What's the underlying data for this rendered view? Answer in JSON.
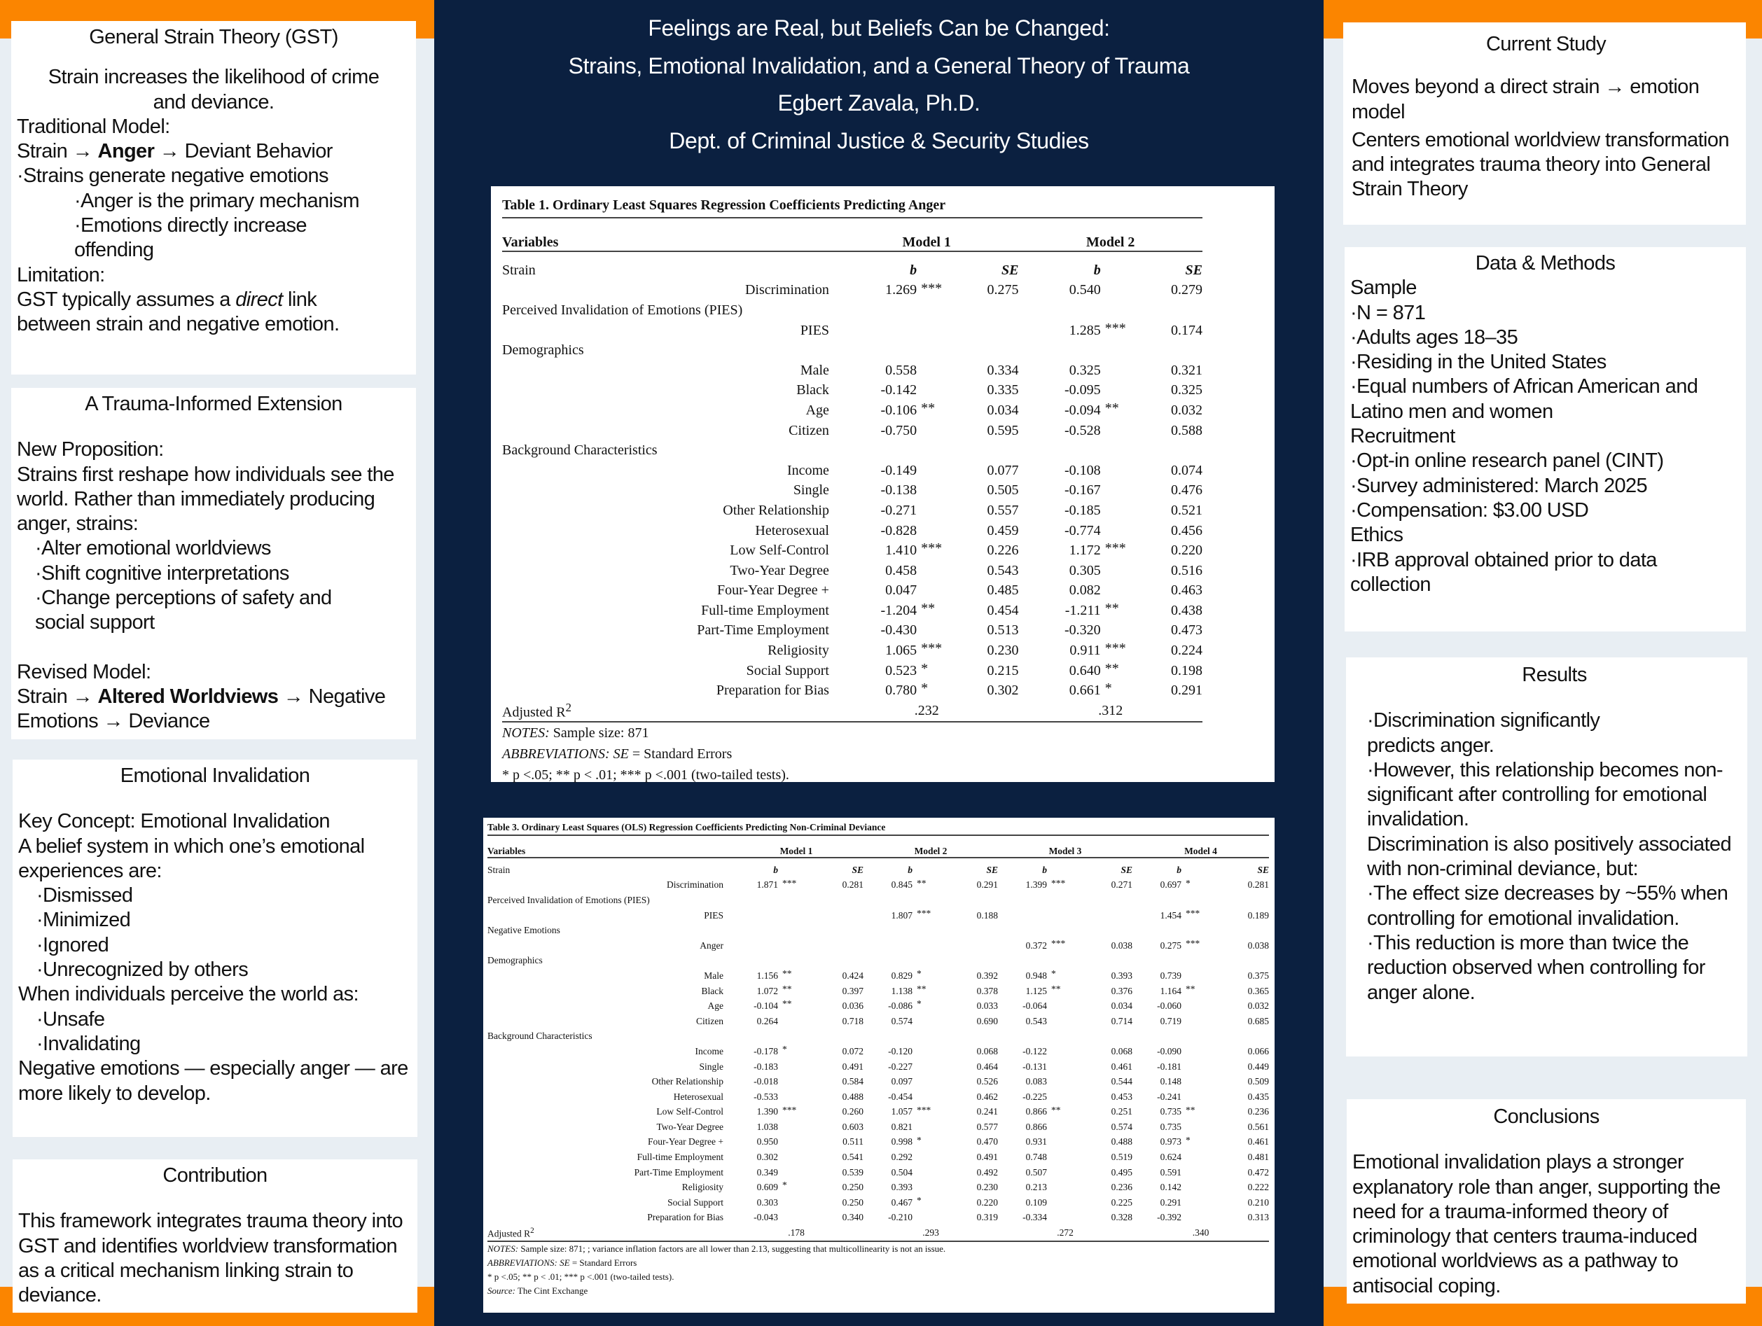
{
  "colors": {
    "orange": "#fb8500",
    "navy": "#0b2040",
    "background": "#e8eef3"
  },
  "header": {
    "title_line1": "Feelings are Real, but Beliefs Can be Changed:",
    "title_line2": "Strains, Emotional Invalidation, and a General Theory of Trauma",
    "author": "Egbert Zavala, Ph.D.",
    "department": "Dept.  of Criminal Justice & Security Studies"
  },
  "gst": {
    "title": "General Strain Theory (GST)",
    "intro": "Strain increases the likelihood of crime and deviance.",
    "traditional_label": "Traditional Model:",
    "model_a": "Strain → ",
    "model_b": "Anger",
    "model_c": " →  Deviant Behavior",
    "b1": "·Strains generate negative emotions",
    "b2": "·Anger is the primary mechanism",
    "b3": "·Emotions directly increase offending",
    "limitation_label": "Limitation:",
    "lim_a": "GST typically assumes a ",
    "lim_b": "direct",
    "lim_c": " link between strain and negative emotion."
  },
  "trauma": {
    "title": "A Trauma-Informed Extension",
    "prop_label": "New Proposition:",
    "prop_text": "Strains first reshape how individuals see the world.  Rather than immediately producing anger, strains:",
    "b1": "·Alter emotional worldviews",
    "b2": "·Shift cognitive interpretations",
    "b3": "·Change perceptions of safety and social support",
    "revised_label": "Revised Model:",
    "rev_a": "Strain → ",
    "rev_b": "Altered Worldviews",
    "rev_c": " → Negative Emotions → Deviance"
  },
  "invalidation": {
    "title": "Emotional Invalidation",
    "key_a": "Key Concept:",
    "key_b": "  Emotional Invalidation",
    "def": "A belief system in which one’s emotional experiences are:",
    "b1": "·Dismissed",
    "b2": "·Minimized",
    "b3": "·Ignored",
    "b4": "·Unrecognized by others",
    "perceive": "When individuals perceive the world as:",
    "b5": "·Unsafe",
    "b6": "·Invalidating",
    "result": "Negative emotions — especially anger — are more likely to develop."
  },
  "contribution": {
    "title": "Contribution",
    "text": "This framework integrates trauma theory into GST and identifies worldview transformation as a critical mechanism linking strain to deviance."
  },
  "current": {
    "title": "Current Study",
    "p1": "Moves beyond a direct strain → emotion model",
    "p2": "Centers emotional worldview transformation and integrates trauma theory into General Strain Theory"
  },
  "methods": {
    "title": "Data & Methods",
    "sample_label": "Sample",
    "s1": "·N = 871",
    "s2": "·Adults ages 18–35",
    "s3": "·Residing in the United States",
    "s4": "·Equal numbers of African American and Latino men and women",
    "recruit_label": "Recruitment",
    "r1": "·Opt-in online research panel (CINT)",
    "r2": "·Survey administered: March 2025",
    "r3": "·Compensation: $3.00 USD",
    "ethics_label": "Ethics",
    "e1": "·IRB approval obtained prior to data collection"
  },
  "results": {
    "title": "Results",
    "b1": "·Discrimination significantly predicts anger.",
    "b2": "·However, this relationship becomes non-significant after controlling for emotional invalidation.",
    "p1": "Discrimination is also positively associated with non-criminal deviance, but:",
    "b3": "·The effect size decreases by ~55% when controlling for emotional invalidation.",
    "b4": "·This reduction is more than twice the reduction observed when controlling for anger alone."
  },
  "conclusions": {
    "title": "Conclusions",
    "text": "Emotional invalidation plays a stronger explanatory role than anger, supporting the need for a trauma-informed theory of criminology that centers trauma-induced emotional worldviews as a pathway to antisocial coping."
  },
  "table1": {
    "title": "Table 1. Ordinary Least Squares Regression Coefficients Predicting Anger",
    "variables": "Variables",
    "models": [
      "Model 1",
      "Model 2"
    ],
    "b": "b",
    "se": "SE",
    "rows": [
      {
        "label": "Strain",
        "type": "section",
        "subhdr": true
      },
      {
        "label": "Discrimination",
        "cells": [
          [
            "1.269",
            "***",
            "0.275"
          ],
          [
            "0.540",
            "",
            "0.279"
          ]
        ]
      },
      {
        "label": "Perceived Invalidation of Emotions (PIES)",
        "type": "section"
      },
      {
        "label": "PIES",
        "cells": [
          [
            "",
            "",
            ""
          ],
          [
            "1.285",
            "***",
            "0.174"
          ]
        ]
      },
      {
        "label": "Demographics",
        "type": "section"
      },
      {
        "label": "Male",
        "cells": [
          [
            "0.558",
            "",
            "0.334"
          ],
          [
            "0.325",
            "",
            "0.321"
          ]
        ]
      },
      {
        "label": "Black",
        "cells": [
          [
            "-0.142",
            "",
            "0.335"
          ],
          [
            "-0.095",
            "",
            "0.325"
          ]
        ]
      },
      {
        "label": "Age",
        "cells": [
          [
            "-0.106",
            "**",
            "0.034"
          ],
          [
            "-0.094",
            "**",
            "0.032"
          ]
        ]
      },
      {
        "label": "Citizen",
        "cells": [
          [
            "-0.750",
            "",
            "0.595"
          ],
          [
            "-0.528",
            "",
            "0.588"
          ]
        ]
      },
      {
        "label": "Background Characteristics",
        "type": "section"
      },
      {
        "label": "Income",
        "cells": [
          [
            "-0.149",
            "",
            "0.077"
          ],
          [
            "-0.108",
            "",
            "0.074"
          ]
        ]
      },
      {
        "label": "Single",
        "cells": [
          [
            "-0.138",
            "",
            "0.505"
          ],
          [
            "-0.167",
            "",
            "0.476"
          ]
        ]
      },
      {
        "label": "Other Relationship",
        "cells": [
          [
            "-0.271",
            "",
            "0.557"
          ],
          [
            "-0.185",
            "",
            "0.521"
          ]
        ]
      },
      {
        "label": "Heterosexual",
        "cells": [
          [
            "-0.828",
            "",
            "0.459"
          ],
          [
            "-0.774",
            "",
            "0.456"
          ]
        ]
      },
      {
        "label": "Low Self-Control",
        "cells": [
          [
            "1.410",
            "***",
            "0.226"
          ],
          [
            "1.172",
            "***",
            "0.220"
          ]
        ]
      },
      {
        "label": "Two-Year Degree",
        "cells": [
          [
            "0.458",
            "",
            "0.543"
          ],
          [
            "0.305",
            "",
            "0.516"
          ]
        ]
      },
      {
        "label": "Four-Year Degree +",
        "cells": [
          [
            "0.047",
            "",
            "0.485"
          ],
          [
            "0.082",
            "",
            "0.463"
          ]
        ]
      },
      {
        "label": "Full-time Employment",
        "cells": [
          [
            "-1.204",
            "**",
            "0.454"
          ],
          [
            "-1.211",
            "**",
            "0.438"
          ]
        ]
      },
      {
        "label": "Part-Time Employment",
        "cells": [
          [
            "-0.430",
            "",
            "0.513"
          ],
          [
            "-0.320",
            "",
            "0.473"
          ]
        ]
      },
      {
        "label": "Religiosity",
        "cells": [
          [
            "1.065",
            "***",
            "0.230"
          ],
          [
            "0.911",
            "***",
            "0.224"
          ]
        ]
      },
      {
        "label": "Social Support",
        "cells": [
          [
            "0.523",
            "*",
            "0.215"
          ],
          [
            "0.640",
            "**",
            "0.198"
          ]
        ]
      },
      {
        "label": "Preparation for Bias",
        "cells": [
          [
            "0.780",
            "*",
            "0.302"
          ],
          [
            "0.661",
            "*",
            "0.291"
          ]
        ]
      }
    ],
    "r2_label": "Adjusted R",
    "r2_sup": "2",
    "r2": [
      ".232",
      ".312"
    ],
    "notes": [
      {
        "it": "NOTES:",
        "tx": "  Sample size: 871"
      },
      {
        "it": "ABBREVIATIONS: SE",
        "tx": " = Standard Errors"
      },
      {
        "it": "",
        "tx": "* p <.05; ** p < .01; *** p <.001 (two-tailed tests)."
      }
    ]
  },
  "table3": {
    "title": "Table 3. Ordinary Least Squares (OLS) Regression Coefficients Predicting Non-Criminal Deviance",
    "variables": "Variables",
    "models": [
      "Model 1",
      "Model 2",
      "Model 3",
      "Model 4"
    ],
    "b": "b",
    "se": "SE",
    "rows": [
      {
        "label": "Strain",
        "type": "section",
        "subhdr": true
      },
      {
        "label": "Discrimination",
        "cells": [
          [
            "1.871",
            "***",
            "0.281"
          ],
          [
            "0.845",
            "**",
            "0.291"
          ],
          [
            "1.399",
            "***",
            "0.271"
          ],
          [
            "0.697",
            "*",
            "0.281"
          ]
        ]
      },
      {
        "label": "Perceived Invalidation of Emotions (PIES)",
        "type": "section"
      },
      {
        "label": "PIES",
        "cells": [
          [
            "",
            "",
            ""
          ],
          [
            "1.807",
            "***",
            "0.188"
          ],
          [
            "",
            "",
            ""
          ],
          [
            "1.454",
            "***",
            "0.189"
          ]
        ]
      },
      {
        "label": "Negative Emotions",
        "type": "section"
      },
      {
        "label": "Anger",
        "cells": [
          [
            "",
            "",
            ""
          ],
          [
            "",
            "",
            ""
          ],
          [
            "0.372",
            "***",
            "0.038"
          ],
          [
            "0.275",
            "***",
            "0.038"
          ]
        ]
      },
      {
        "label": "Demographics",
        "type": "section"
      },
      {
        "label": "Male",
        "cells": [
          [
            "1.156",
            "**",
            "0.424"
          ],
          [
            "0.829",
            "*",
            "0.392"
          ],
          [
            "0.948",
            "*",
            "0.393"
          ],
          [
            "0.739",
            "",
            "0.375"
          ]
        ]
      },
      {
        "label": "Black",
        "cells": [
          [
            "1.072",
            "**",
            "0.397"
          ],
          [
            "1.138",
            "**",
            "0.378"
          ],
          [
            "1.125",
            "**",
            "0.376"
          ],
          [
            "1.164",
            "**",
            "0.365"
          ]
        ]
      },
      {
        "label": "Age",
        "cells": [
          [
            "-0.104",
            "**",
            "0.036"
          ],
          [
            "-0.086",
            "*",
            "0.033"
          ],
          [
            "-0.064",
            "",
            "0.034"
          ],
          [
            "-0.060",
            "",
            "0.032"
          ]
        ]
      },
      {
        "label": "Citizen",
        "cells": [
          [
            "0.264",
            "",
            "0.718"
          ],
          [
            "0.574",
            "",
            "0.690"
          ],
          [
            "0.543",
            "",
            "0.714"
          ],
          [
            "0.719",
            "",
            "0.685"
          ]
        ]
      },
      {
        "label": "Background Characteristics",
        "type": "section"
      },
      {
        "label": "Income",
        "cells": [
          [
            "-0.178",
            "*",
            "0.072"
          ],
          [
            "-0.120",
            "",
            "0.068"
          ],
          [
            "-0.122",
            "",
            "0.068"
          ],
          [
            "-0.090",
            "",
            "0.066"
          ]
        ]
      },
      {
        "label": "Single",
        "cells": [
          [
            "-0.183",
            "",
            "0.491"
          ],
          [
            "-0.227",
            "",
            "0.464"
          ],
          [
            "-0.131",
            "",
            "0.461"
          ],
          [
            "-0.181",
            "",
            "0.449"
          ]
        ]
      },
      {
        "label": "Other Relationship",
        "cells": [
          [
            "-0.018",
            "",
            "0.584"
          ],
          [
            "0.097",
            "",
            "0.526"
          ],
          [
            "0.083",
            "",
            "0.544"
          ],
          [
            "0.148",
            "",
            "0.509"
          ]
        ]
      },
      {
        "label": "Heterosexual",
        "cells": [
          [
            "-0.533",
            "",
            "0.488"
          ],
          [
            "-0.454",
            "",
            "0.462"
          ],
          [
            "-0.225",
            "",
            "0.453"
          ],
          [
            "-0.241",
            "",
            "0.435"
          ]
        ]
      },
      {
        "label": "Low Self-Control",
        "cells": [
          [
            "1.390",
            "***",
            "0.260"
          ],
          [
            "1.057",
            "***",
            "0.241"
          ],
          [
            "0.866",
            "**",
            "0.251"
          ],
          [
            "0.735",
            "**",
            "0.236"
          ]
        ]
      },
      {
        "label": "Two-Year Degree",
        "cells": [
          [
            "1.038",
            "",
            "0.603"
          ],
          [
            "0.821",
            "",
            "0.577"
          ],
          [
            "0.866",
            "",
            "0.574"
          ],
          [
            "0.735",
            "",
            "0.561"
          ]
        ]
      },
      {
        "label": "Four-Year Degree +",
        "cells": [
          [
            "0.950",
            "",
            "0.511"
          ],
          [
            "0.998",
            "*",
            "0.470"
          ],
          [
            "0.931",
            "",
            "0.488"
          ],
          [
            "0.973",
            "*",
            "0.461"
          ]
        ]
      },
      {
        "label": "Full-time Employment",
        "cells": [
          [
            "0.302",
            "",
            "0.541"
          ],
          [
            "0.292",
            "",
            "0.491"
          ],
          [
            "0.748",
            "",
            "0.519"
          ],
          [
            "0.624",
            "",
            "0.481"
          ]
        ]
      },
      {
        "label": "Part-Time Employment",
        "cells": [
          [
            "0.349",
            "",
            "0.539"
          ],
          [
            "0.504",
            "",
            "0.492"
          ],
          [
            "0.507",
            "",
            "0.495"
          ],
          [
            "0.591",
            "",
            "0.472"
          ]
        ]
      },
      {
        "label": "Religiosity",
        "cells": [
          [
            "0.609",
            "*",
            "0.250"
          ],
          [
            "0.393",
            "",
            "0.230"
          ],
          [
            "0.213",
            "",
            "0.236"
          ],
          [
            "0.142",
            "",
            "0.222"
          ]
        ]
      },
      {
        "label": "Social Support",
        "cells": [
          [
            "0.303",
            "",
            "0.250"
          ],
          [
            "0.467",
            "*",
            "0.220"
          ],
          [
            "0.109",
            "",
            "0.225"
          ],
          [
            "0.291",
            "",
            "0.210"
          ]
        ]
      },
      {
        "label": "Preparation for Bias",
        "cells": [
          [
            "-0.043",
            "",
            "0.340"
          ],
          [
            "-0.210",
            "",
            "0.319"
          ],
          [
            "-0.334",
            "",
            "0.328"
          ],
          [
            "-0.392",
            "",
            "0.313"
          ]
        ]
      }
    ],
    "r2_label": "Adjusted R",
    "r2_sup": "2",
    "r2": [
      ".178",
      ".293",
      ".272",
      ".340"
    ],
    "notes": [
      {
        "it": "NOTES:",
        "tx": "  Sample size: 871; ; variance inflation factors are all lower than 2.13, suggesting that multicollinearity is not an issue."
      },
      {
        "it": "ABBREVIATIONS: SE",
        "tx": " = Standard Errors"
      },
      {
        "it": "",
        "tx": "* p <.05; ** p < .01; *** p <.001 (two-tailed tests)."
      },
      {
        "it": "Source:",
        "tx": "  The Cint Exchange"
      }
    ]
  }
}
